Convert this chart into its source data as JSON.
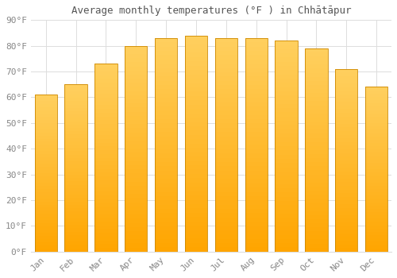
{
  "title": "Average monthly temperatures (°F ) in Chhātāpur",
  "months": [
    "Jan",
    "Feb",
    "Mar",
    "Apr",
    "May",
    "Jun",
    "Jul",
    "Aug",
    "Sep",
    "Oct",
    "Nov",
    "Dec"
  ],
  "values": [
    61,
    65,
    73,
    80,
    83,
    84,
    83,
    83,
    82,
    79,
    71,
    64
  ],
  "bar_color_bottom": "#FFA500",
  "bar_color_top": "#FFD060",
  "bar_edge_color": "#CC8800",
  "background_color": "#FFFFFF",
  "grid_color": "#DDDDDD",
  "ylim": [
    0,
    90
  ],
  "yticks": [
    0,
    10,
    20,
    30,
    40,
    50,
    60,
    70,
    80,
    90
  ],
  "title_fontsize": 9,
  "tick_fontsize": 8,
  "tick_label_color": "#888888",
  "title_color": "#555555"
}
